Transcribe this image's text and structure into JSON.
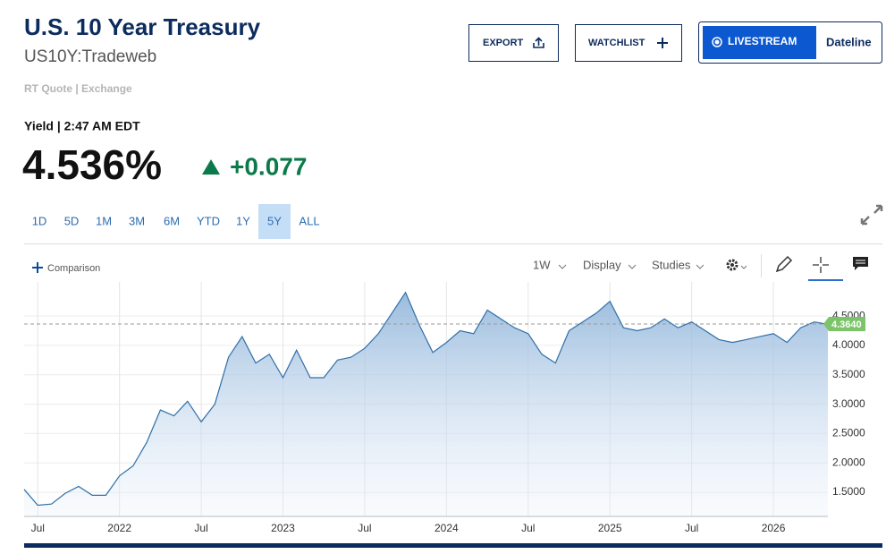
{
  "header": {
    "title": "U.S. 10 Year Treasury",
    "symbol": "US10Y:Tradeweb",
    "quote_source": "RT Quote | Exchange"
  },
  "buttons": {
    "export": "EXPORT",
    "watchlist": "WATCHLIST",
    "livestream": "LIVESTREAM",
    "dateline": "Dateline"
  },
  "quote": {
    "label": "Yield | 2:47 AM EDT",
    "value": "4.536%",
    "change": "+0.077"
  },
  "range_buttons": [
    "1D",
    "5D",
    "1M",
    "3M",
    "6M",
    "YTD",
    "1Y",
    "5Y",
    "ALL"
  ],
  "active_range_index": 7,
  "toolbar": {
    "comparison": "Comparison",
    "interval": "1W",
    "display": "Display",
    "studies": "Studies"
  },
  "chart_data": {
    "type": "line",
    "categories": [
      null,
      "Jul",
      null,
      null,
      null,
      null,
      null,
      "2022",
      null,
      null,
      null,
      null,
      null,
      "Jul",
      null,
      null,
      null,
      null,
      null,
      "2023",
      null,
      null,
      null,
      null,
      null,
      "Jul",
      null,
      null,
      null,
      null,
      null,
      "2024",
      null,
      null,
      null,
      null,
      null,
      "Jul",
      null,
      null,
      null,
      null,
      null,
      "2025",
      null,
      null,
      null,
      null,
      null,
      "Jul",
      null,
      null,
      null,
      null,
      null,
      "2026",
      null,
      null,
      null,
      null
    ],
    "series": [
      {
        "color": "#2f6fa8",
        "values": [
          1.55,
          1.28,
          1.3,
          1.48,
          1.6,
          1.45,
          1.45,
          1.78,
          1.95,
          2.35,
          2.9,
          2.8,
          3.05,
          2.7,
          3.0,
          3.8,
          4.15,
          3.7,
          3.85,
          3.45,
          3.92,
          3.45,
          3.45,
          3.75,
          3.8,
          3.95,
          4.2,
          4.55,
          4.9,
          4.35,
          3.88,
          4.05,
          4.25,
          4.2,
          4.6,
          4.45,
          4.3,
          4.2,
          3.85,
          3.7,
          4.25,
          4.4,
          4.55,
          4.75,
          4.3,
          4.25,
          4.3,
          4.45,
          4.3,
          4.4,
          4.25,
          4.1,
          4.05,
          4.1,
          4.15,
          4.2,
          4.05,
          4.3,
          4.4,
          4.36
        ]
      }
    ],
    "ylim": [
      1.09,
      5.08
    ],
    "yticks": [
      {
        "value": 1.5,
        "label": "1.5000"
      },
      {
        "value": 2,
        "label": "2.0000"
      },
      {
        "value": 2.5,
        "label": "2.5000"
      },
      {
        "value": 3,
        "label": "3.0000"
      },
      {
        "value": 3.5,
        "label": "3.5000"
      },
      {
        "value": 4,
        "label": "4.0000"
      },
      {
        "value": 4.5,
        "label": "4.5000"
      }
    ],
    "reference_line": {
      "value": 4.364,
      "label": "4.3640",
      "color": "#7cc46a"
    },
    "grid": true
  }
}
